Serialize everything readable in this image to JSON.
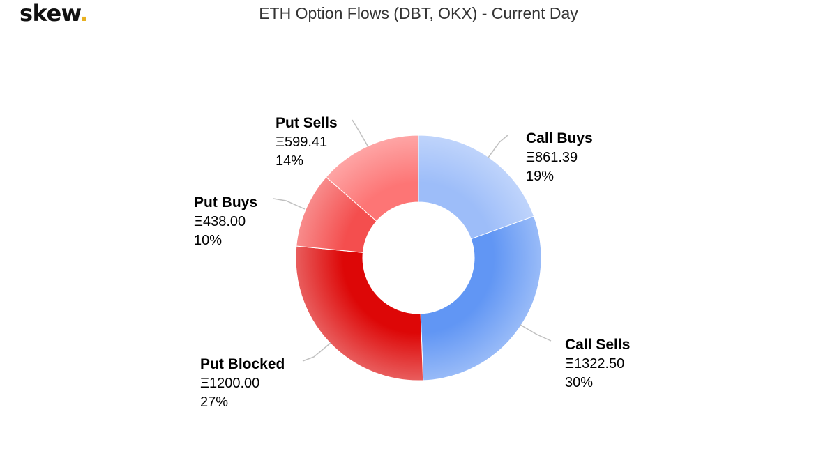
{
  "header": {
    "logo_text": "skew",
    "logo_dot": "."
  },
  "chart_data": {
    "type": "pie",
    "title": "ETH Option Flows (DBT, OKX) - Current Day",
    "currency_symbol": "Ξ",
    "slices": [
      {
        "name": "Call Buys",
        "value": 861.39,
        "value_label": "Ξ861.39",
        "percent_label": "19%",
        "color": "#9dbdf9"
      },
      {
        "name": "Call Sells",
        "value": 1322.5,
        "value_label": "Ξ1322.50",
        "percent_label": "30%",
        "color": "#6196f4"
      },
      {
        "name": "Put Blocked",
        "value": 1200.0,
        "value_label": "Ξ1200.00",
        "percent_label": "27%",
        "color": "#dd0707"
      },
      {
        "name": "Put Buys",
        "value": 438.0,
        "value_label": "Ξ438.00",
        "percent_label": "10%",
        "color": "#f44e4e"
      },
      {
        "name": "Put Sells",
        "value": 599.41,
        "value_label": "Ξ599.41",
        "percent_label": "14%",
        "color": "#fd7575"
      }
    ]
  },
  "colors": {
    "logo_dot": "#e8b021",
    "connector": "#c0c0c0"
  }
}
